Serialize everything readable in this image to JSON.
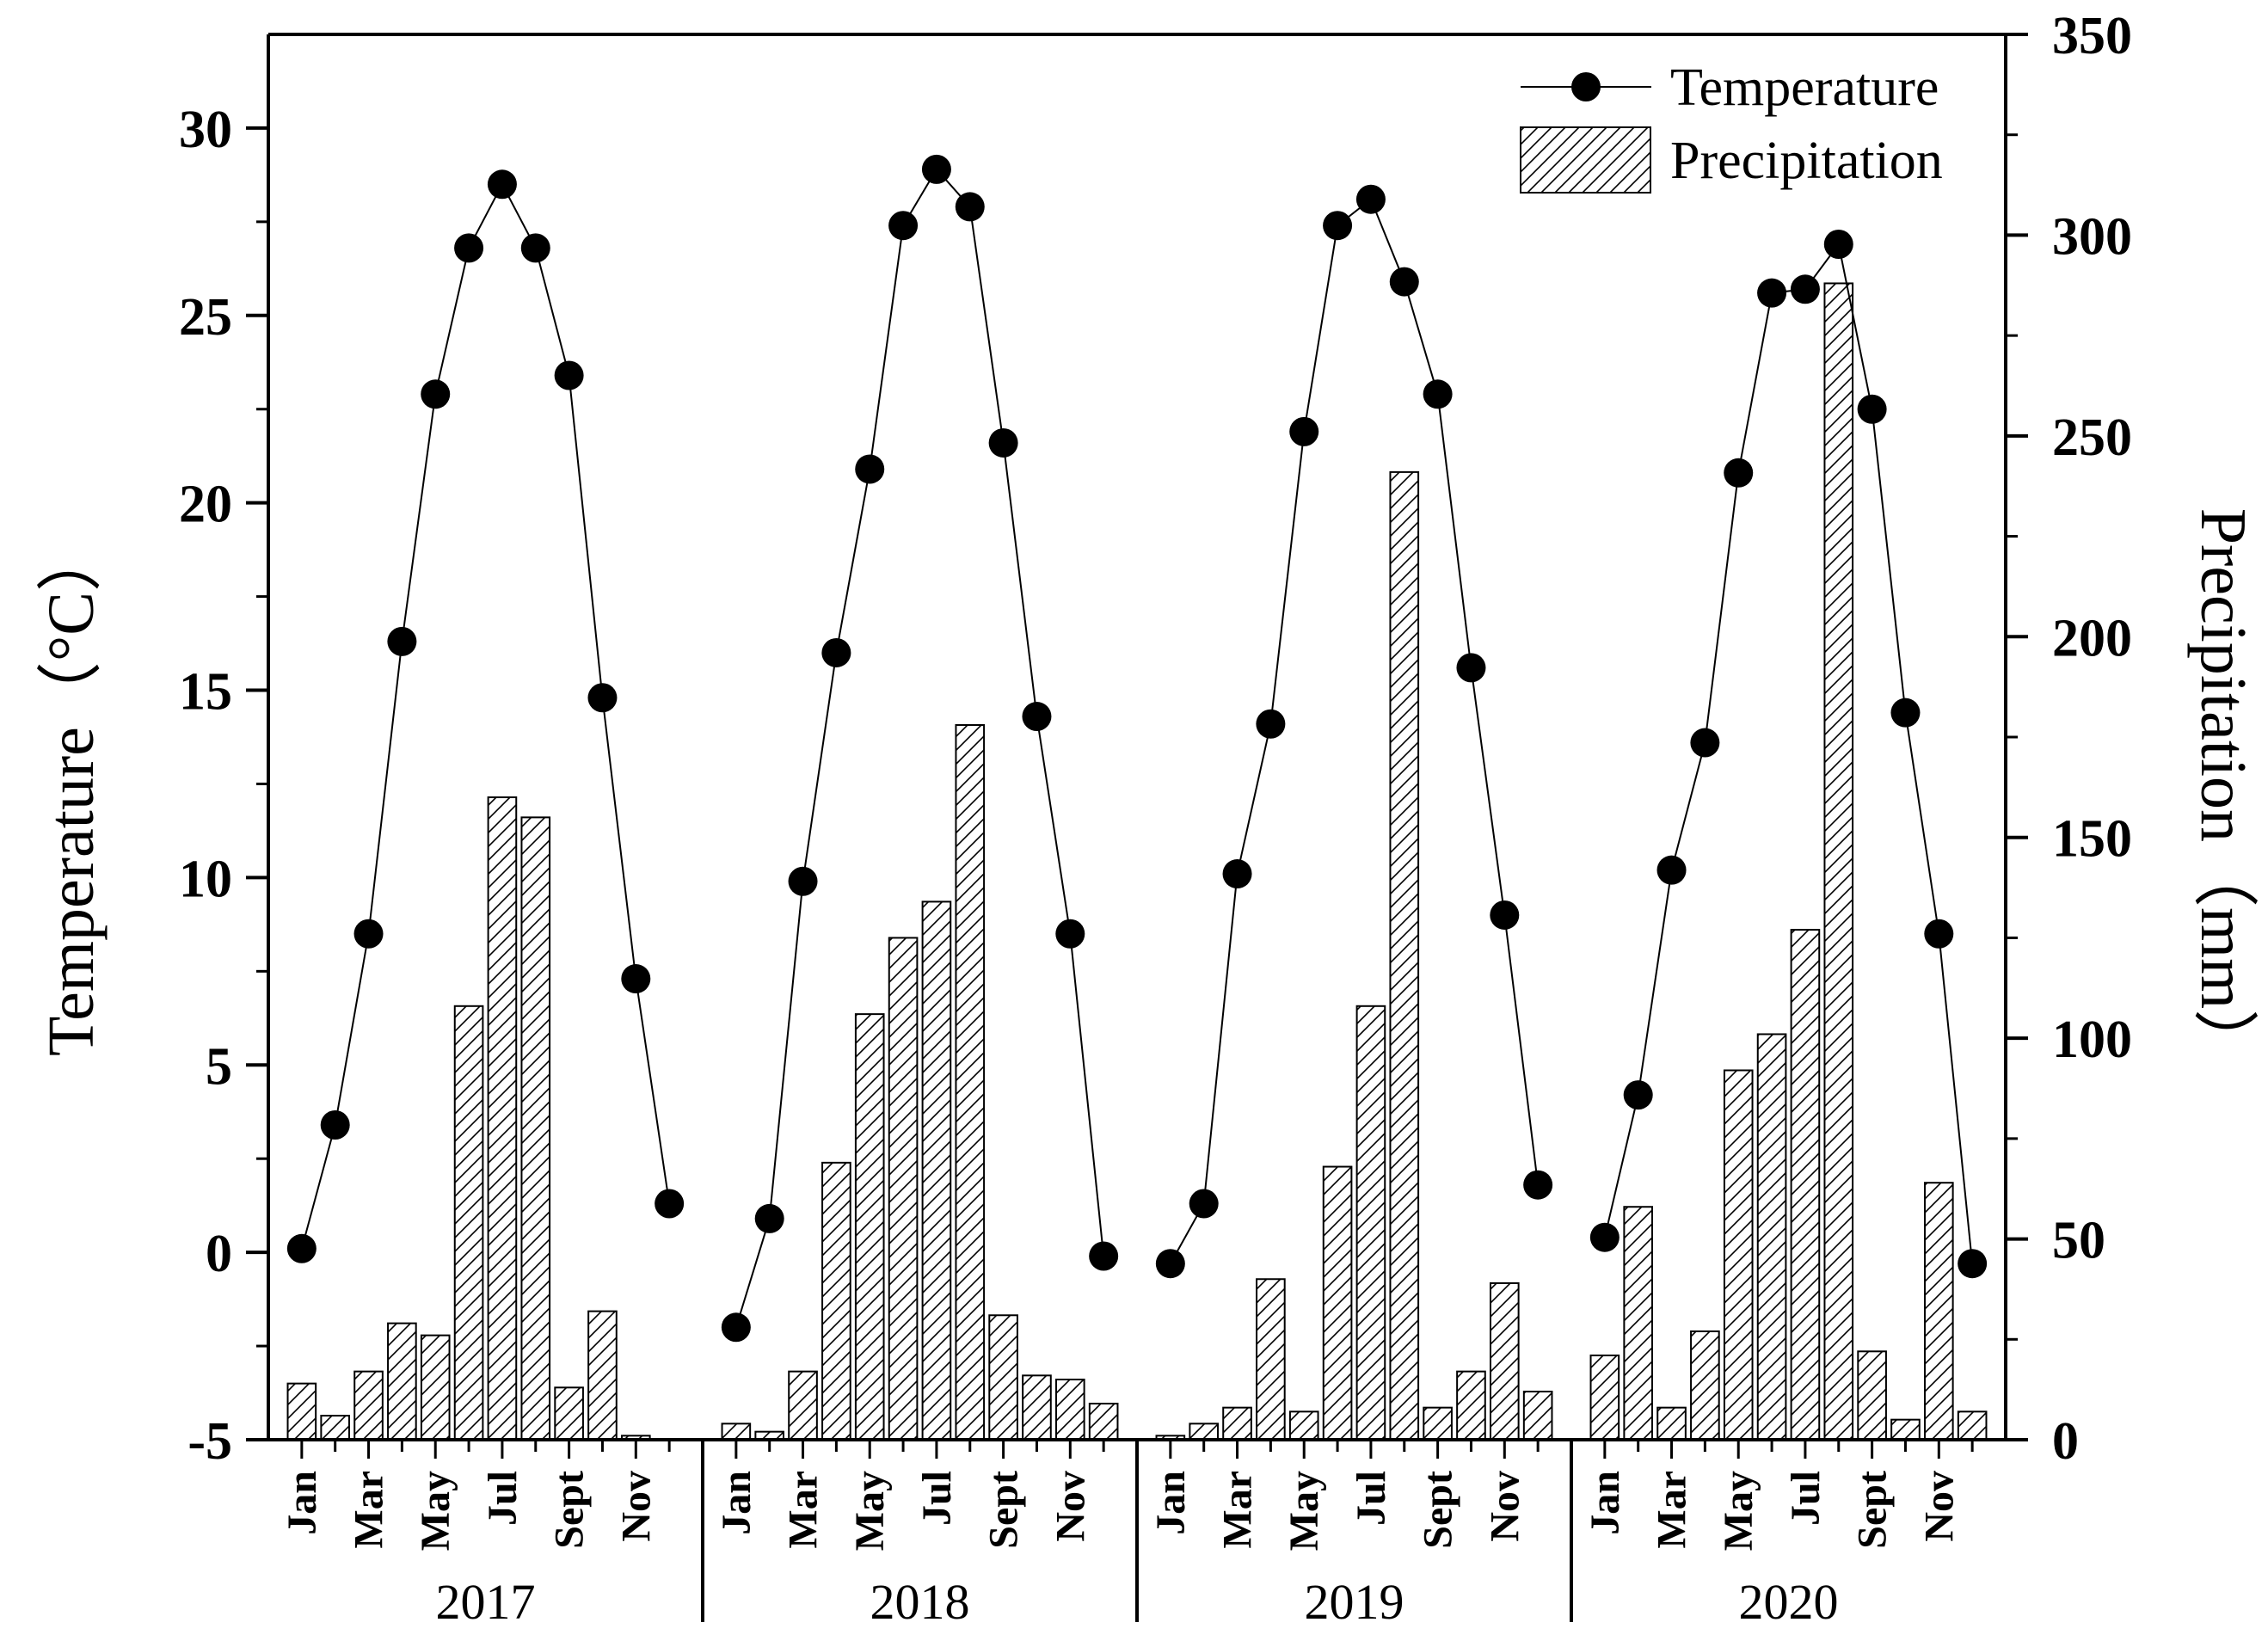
{
  "chart_data": {
    "type": "bar+line",
    "title": "",
    "ylabel_left": "Temperature（°C）",
    "ylabel_right": "Precipitation（mm）",
    "ylim_left": [
      -5,
      32.5
    ],
    "ylim_right": [
      0,
      350
    ],
    "yticks_left": [
      -5,
      0,
      5,
      10,
      15,
      20,
      25,
      30
    ],
    "yticks_right": [
      0,
      50,
      100,
      150,
      200,
      250,
      300,
      350
    ],
    "ytick_labels_left": [
      "-5",
      "0",
      "5",
      "10",
      "15",
      "20",
      "25",
      "30"
    ],
    "ytick_labels_right": [
      "0",
      "50",
      "100",
      "150",
      "200",
      "250",
      "300",
      "350"
    ],
    "month_tick_labels": [
      "Jan",
      "Mar",
      "May",
      "Jul",
      "Sept",
      "Nov"
    ],
    "month_tick_indices": [
      0,
      2,
      4,
      6,
      8,
      10
    ],
    "years": [
      "2017",
      "2018",
      "2019",
      "2020"
    ],
    "legend": {
      "position": "top-right",
      "temperature_label": "Temperature",
      "precipitation_label": "Precipitation"
    },
    "series": [
      {
        "name": "Temperature",
        "type": "line",
        "axis": "left",
        "values": [
          [
            0.1,
            3.4,
            8.5,
            16.3,
            22.9,
            26.8,
            28.5,
            26.8,
            23.4,
            14.8,
            7.3,
            1.3
          ],
          [
            -2.0,
            0.9,
            9.9,
            16.0,
            20.9,
            27.4,
            28.9,
            27.9,
            21.6,
            14.3,
            8.5,
            -0.1
          ],
          [
            -0.3,
            1.3,
            10.1,
            14.1,
            21.9,
            27.4,
            28.1,
            25.9,
            22.9,
            15.6,
            9.0,
            1.8
          ],
          [
            0.4,
            4.2,
            10.2,
            13.6,
            20.8,
            25.6,
            25.7,
            26.9,
            22.5,
            14.4,
            8.5,
            -0.3
          ]
        ]
      },
      {
        "name": "Precipitation",
        "type": "bar",
        "axis": "right",
        "values": [
          [
            14,
            6,
            17,
            29,
            26,
            108,
            160,
            155,
            13,
            32,
            1,
            0
          ],
          [
            4,
            2,
            17,
            69,
            106,
            125,
            134,
            178,
            31,
            16,
            15,
            9
          ],
          [
            1,
            4,
            8,
            40,
            7,
            68,
            108,
            241,
            8,
            17,
            39,
            12
          ],
          [
            21,
            58,
            8,
            27,
            92,
            101,
            127,
            288,
            22,
            5,
            64,
            7
          ]
        ]
      }
    ]
  }
}
